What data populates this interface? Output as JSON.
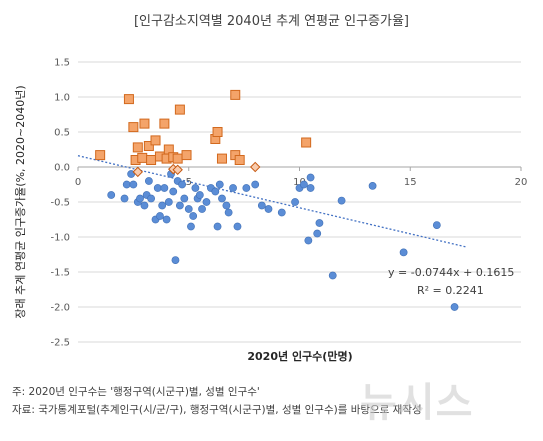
{
  "title": "[인구감소지역별 2040년 추계 연평균 인구증가율]",
  "notes": {
    "note1": "주: 2020년 인구수는 '행정구역(시군구)별, 성별 인구수'",
    "note2": "자료: 국가통계포털(추계인구(시/군/구), 행정구역(시군구)별, 성별 인구수)를 바탕으로 재작성"
  },
  "watermark": "뉴시스",
  "colors": {
    "blue": "#5b8dd6",
    "orange": "#f4a46a",
    "orange_edge": "#d2691e",
    "trend": "#4472c4",
    "grid": "#d9d9d9"
  },
  "chart_data": {
    "type": "scatter",
    "title": "[인구감소지역별 2040년 추계 연평균 인구증가율]",
    "xlabel": "2020년 인구수(만명)",
    "ylabel": "장래 추계 연평균 인구증가율(%, 2020~2040년)",
    "xlim": [
      0,
      20
    ],
    "ylim": [
      -2.5,
      1.5
    ],
    "xticks": [
      "0",
      "5",
      "10",
      "15",
      "20"
    ],
    "yticks": [
      "1.5",
      "1.0",
      "0.5",
      "0.0",
      "-0.5",
      "-1.0",
      "-1.5",
      "-2.0",
      "-2.5"
    ],
    "grid": "horizontal",
    "trendline": {
      "slope": -0.0744,
      "intercept": 0.1615,
      "equation": "y = -0.0744x + 0.1615",
      "r2": "R² = 0.2241"
    },
    "series": [
      {
        "marker": "circle-blue",
        "points": [
          [
            1.5,
            -0.4
          ],
          [
            2.1,
            -0.45
          ],
          [
            2.2,
            -0.25
          ],
          [
            2.4,
            -0.1
          ],
          [
            2.5,
            -0.25
          ],
          [
            2.7,
            -0.5
          ],
          [
            2.8,
            -0.45
          ],
          [
            3.0,
            -0.55
          ],
          [
            3.1,
            -0.4
          ],
          [
            3.2,
            -0.2
          ],
          [
            3.3,
            -0.45
          ],
          [
            3.5,
            -0.75
          ],
          [
            3.6,
            -0.3
          ],
          [
            3.7,
            -0.7
          ],
          [
            3.8,
            -0.55
          ],
          [
            3.9,
            -0.3
          ],
          [
            4.0,
            -0.75
          ],
          [
            4.1,
            -0.5
          ],
          [
            4.2,
            -0.1
          ],
          [
            4.3,
            -0.35
          ],
          [
            4.4,
            -1.33
          ],
          [
            4.5,
            -0.2
          ],
          [
            4.6,
            -0.55
          ],
          [
            4.7,
            -0.25
          ],
          [
            4.8,
            -0.45
          ],
          [
            5.0,
            -0.6
          ],
          [
            5.1,
            -0.85
          ],
          [
            5.2,
            -0.7
          ],
          [
            5.3,
            -0.3
          ],
          [
            5.4,
            -0.45
          ],
          [
            5.5,
            -0.4
          ],
          [
            5.6,
            -0.6
          ],
          [
            5.8,
            -0.5
          ],
          [
            6.0,
            -0.3
          ],
          [
            6.2,
            -0.35
          ],
          [
            6.3,
            -0.85
          ],
          [
            6.4,
            -0.25
          ],
          [
            6.5,
            -0.45
          ],
          [
            6.7,
            -0.55
          ],
          [
            6.8,
            -0.65
          ],
          [
            7.0,
            -0.3
          ],
          [
            7.2,
            -0.85
          ],
          [
            7.6,
            -0.3
          ],
          [
            8.0,
            -0.25
          ],
          [
            8.3,
            -0.55
          ],
          [
            8.6,
            -0.6
          ],
          [
            9.2,
            -0.65
          ],
          [
            9.8,
            -0.5
          ],
          [
            10.0,
            -0.3
          ],
          [
            10.2,
            -0.25
          ],
          [
            10.4,
            -1.05
          ],
          [
            10.5,
            -0.15
          ],
          [
            10.5,
            -0.3
          ],
          [
            10.8,
            -0.95
          ],
          [
            10.9,
            -0.8
          ],
          [
            11.5,
            -1.55
          ],
          [
            11.9,
            -0.48
          ],
          [
            13.3,
            -0.27
          ],
          [
            14.7,
            -1.22
          ],
          [
            16.2,
            -0.83
          ],
          [
            17.0,
            -2.0
          ]
        ]
      },
      {
        "marker": "square-orange",
        "points": [
          [
            1.0,
            0.17
          ],
          [
            2.3,
            0.97
          ],
          [
            2.5,
            0.57
          ],
          [
            2.6,
            0.1
          ],
          [
            2.7,
            0.28
          ],
          [
            2.9,
            0.13
          ],
          [
            3.0,
            0.62
          ],
          [
            3.2,
            0.3
          ],
          [
            3.3,
            0.1
          ],
          [
            3.5,
            0.38
          ],
          [
            3.7,
            0.15
          ],
          [
            3.9,
            0.62
          ],
          [
            4.0,
            0.12
          ],
          [
            4.1,
            0.25
          ],
          [
            4.3,
            0.14
          ],
          [
            4.5,
            0.12
          ],
          [
            4.6,
            0.82
          ],
          [
            4.9,
            0.17
          ],
          [
            6.2,
            0.4
          ],
          [
            6.3,
            0.5
          ],
          [
            6.5,
            0.12
          ],
          [
            7.1,
            0.17
          ],
          [
            7.3,
            0.1
          ],
          [
            7.1,
            1.03
          ],
          [
            10.3,
            0.35
          ]
        ]
      },
      {
        "marker": "diamond-orange",
        "points": [
          [
            2.7,
            -0.07
          ],
          [
            4.3,
            -0.03
          ],
          [
            4.5,
            -0.04
          ],
          [
            8.0,
            0.0
          ]
        ]
      }
    ]
  }
}
